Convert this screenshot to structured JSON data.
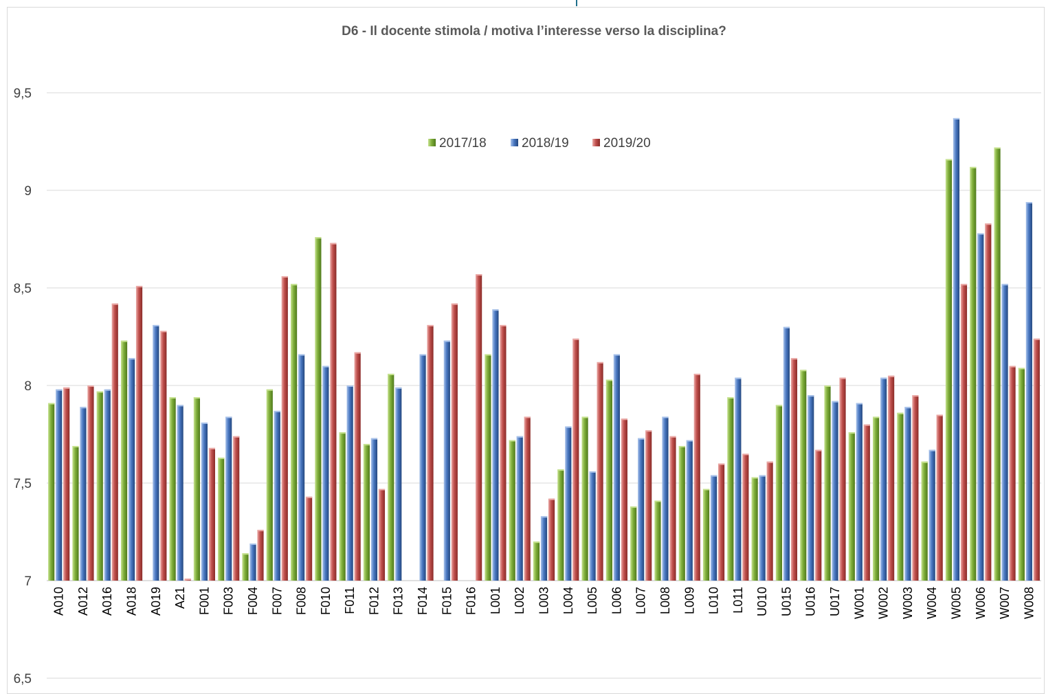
{
  "chart_data": {
    "type": "bar",
    "title": "D6 - Il docente stimola / motiva l’interesse verso la disciplina?",
    "xlabel": "",
    "ylabel": "",
    "ylim": [
      6.5,
      9.5
    ],
    "y_ticks": [
      6.5,
      7,
      7.5,
      8,
      8.5,
      9,
      9.5
    ],
    "y_tick_labels": [
      "6,5",
      "7",
      "7,5",
      "8",
      "8,5",
      "9",
      "9,5"
    ],
    "baseline": 7,
    "grid": true,
    "legend_position": "top-center",
    "categories": [
      "A010",
      "A012",
      "A016",
      "A018",
      "A019",
      "A21",
      "F001",
      "F003",
      "F004",
      "F007",
      "F008",
      "F010",
      "F011",
      "F012",
      "F013",
      "F014",
      "F015",
      "F016",
      "L001",
      "L002",
      "L003",
      "L004",
      "L005",
      "L006",
      "L007",
      "L008",
      "L009",
      "L010",
      "L011",
      "U010",
      "U015",
      "U016",
      "U017",
      "W001",
      "W002",
      "W003",
      "W004",
      "W005",
      "W006",
      "W007",
      "W008"
    ],
    "series": [
      {
        "name": "2017/18",
        "color": "#7fae3a",
        "light": "#c6e28f",
        "dark": "#4f7a1c",
        "values": [
          7.91,
          7.69,
          7.97,
          8.23,
          null,
          7.94,
          7.94,
          7.63,
          7.14,
          7.98,
          8.52,
          8.76,
          7.76,
          7.7,
          8.06,
          null,
          null,
          null,
          8.16,
          7.72,
          7.2,
          7.57,
          7.84,
          8.03,
          7.38,
          7.41,
          7.69,
          7.47,
          7.94,
          7.53,
          7.9,
          8.08,
          8.0,
          7.76,
          7.84,
          7.86,
          7.61,
          9.16,
          9.12,
          9.22,
          8.09
        ]
      },
      {
        "name": "2018/19",
        "color": "#4a78c2",
        "light": "#a8c2ea",
        "dark": "#23477f",
        "values": [
          7.98,
          7.89,
          7.98,
          8.14,
          8.31,
          7.9,
          7.81,
          7.84,
          7.19,
          7.87,
          8.16,
          8.1,
          8.0,
          7.73,
          7.99,
          8.16,
          8.23,
          null,
          8.39,
          7.74,
          7.33,
          7.79,
          7.56,
          8.16,
          7.73,
          7.84,
          7.72,
          7.54,
          8.04,
          7.54,
          8.3,
          7.95,
          7.92,
          7.91,
          8.04,
          7.89,
          7.67,
          9.37,
          8.78,
          8.52,
          8.94
        ]
      },
      {
        "name": "2019/20",
        "color": "#c0504d",
        "light": "#eba9a6",
        "dark": "#8a2b28",
        "values": [
          7.99,
          8.0,
          8.42,
          8.51,
          8.28,
          7.01,
          7.68,
          7.74,
          7.26,
          8.56,
          7.43,
          8.73,
          8.17,
          7.47,
          null,
          8.31,
          8.42,
          8.57,
          8.31,
          7.84,
          7.42,
          8.24,
          8.12,
          7.83,
          7.77,
          7.74,
          8.06,
          7.6,
          7.65,
          7.61,
          8.14,
          7.67,
          8.04,
          7.8,
          8.05,
          7.95,
          7.85,
          8.52,
          8.83,
          8.1,
          8.24
        ]
      }
    ]
  }
}
